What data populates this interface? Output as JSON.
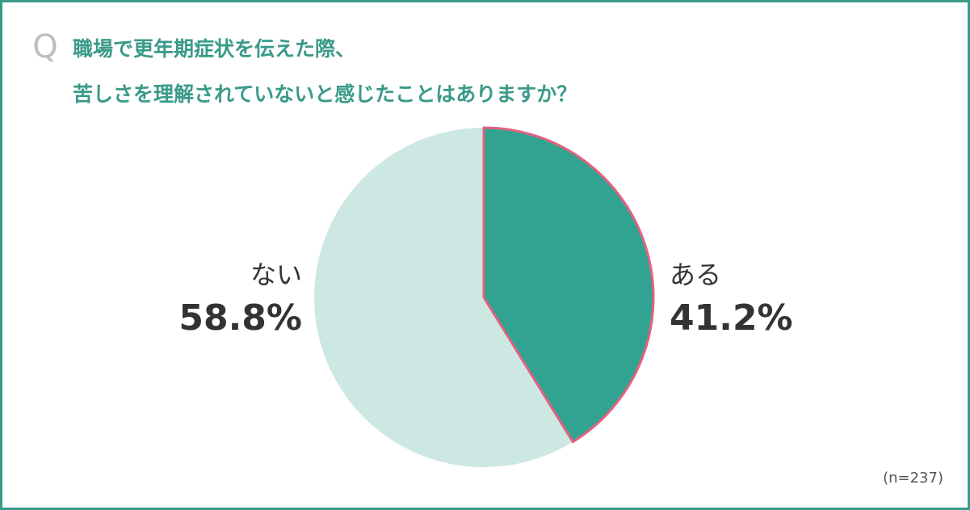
{
  "chart_data": {
    "type": "pie",
    "question_marker": "Q",
    "title_lines": [
      "職場で更年期症状を伝えた際、",
      "苦しさを理解されていないと感じたことはありますか？"
    ],
    "categories": [
      "ある",
      "ない"
    ],
    "values": [
      41.2,
      58.8
    ],
    "value_labels": [
      "41.2%",
      "58.8%"
    ],
    "colors": [
      "#33a391",
      "#cde8e3"
    ],
    "edgecolors": [
      "#e2617f",
      null
    ],
    "note": "(n=237)"
  }
}
